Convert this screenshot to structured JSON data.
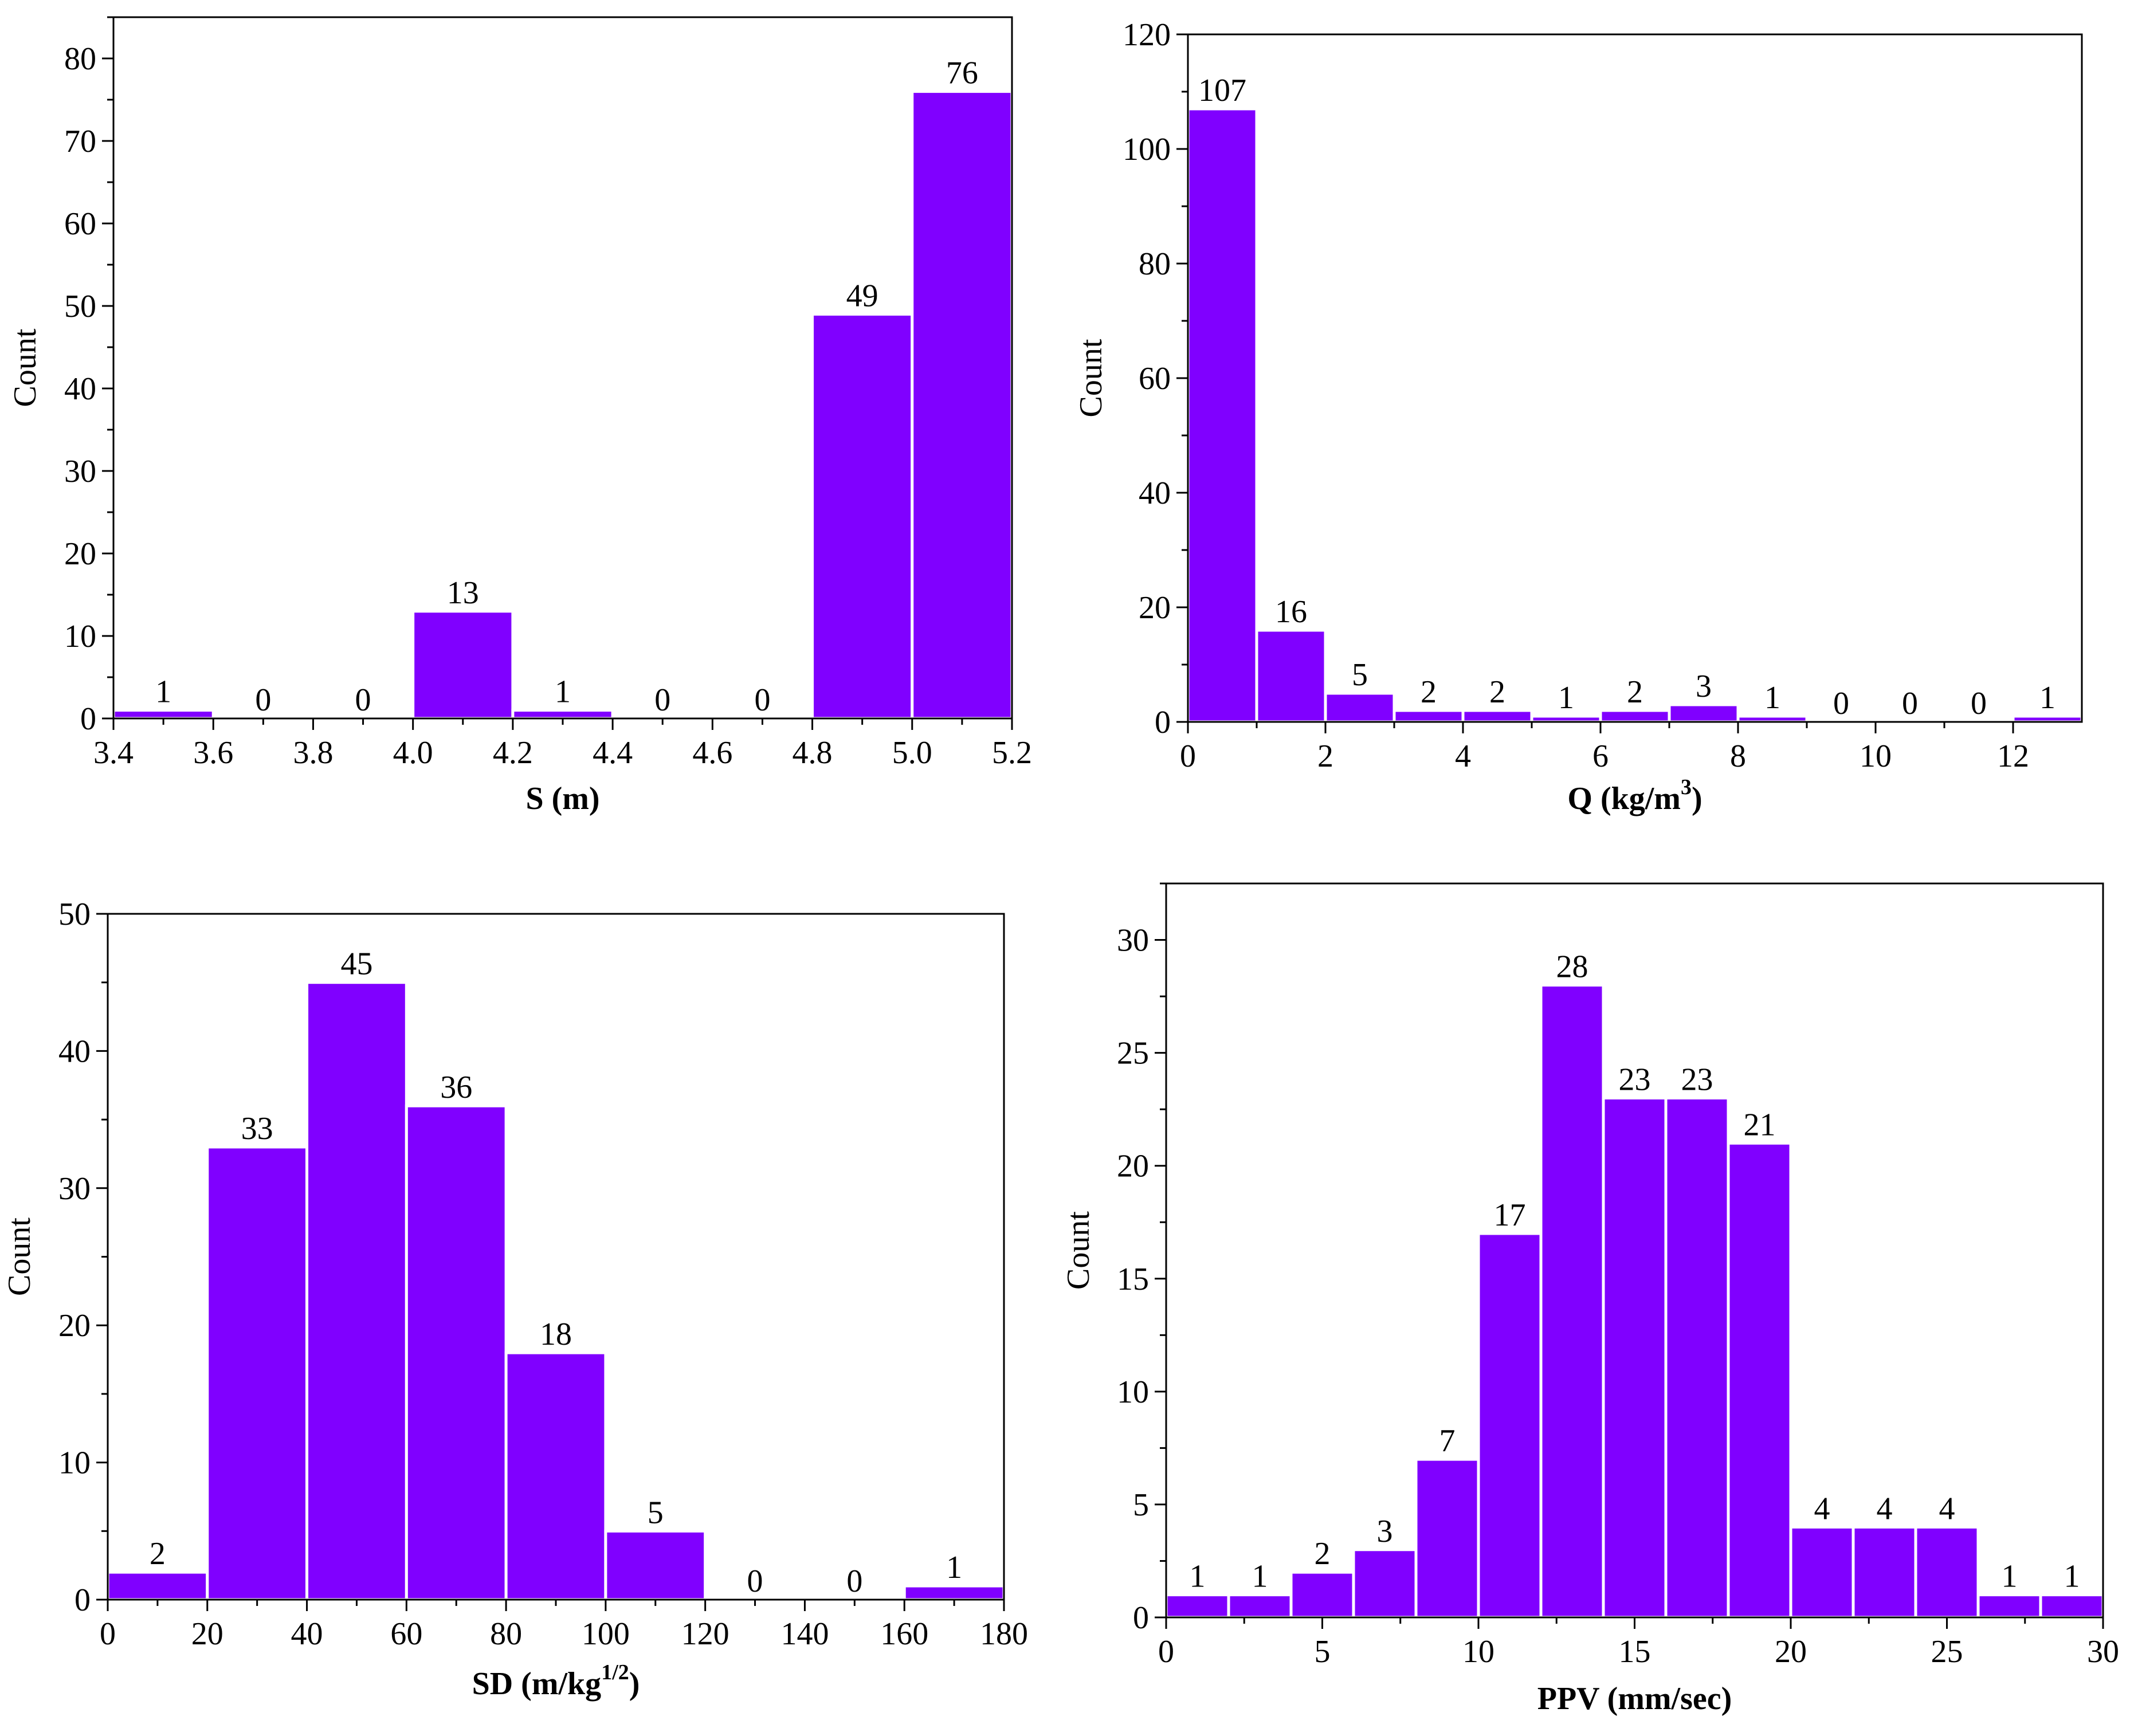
{
  "colors": {
    "bar": "#8000FF",
    "bar_edge": "#ffffff",
    "axis": "#000000"
  },
  "chart_data": [
    {
      "type": "bar",
      "xlabel": "S (m)",
      "ylabel": "Count",
      "bins": [
        [
          3.4,
          3.6
        ],
        [
          3.6,
          3.8
        ],
        [
          3.8,
          4.0
        ],
        [
          4.0,
          4.2
        ],
        [
          4.2,
          4.4
        ],
        [
          4.4,
          4.6
        ],
        [
          4.6,
          4.8
        ],
        [
          4.8,
          5.0
        ],
        [
          5.0,
          5.2
        ]
      ],
      "values": [
        1,
        0,
        0,
        13,
        1,
        0,
        0,
        49,
        76
      ],
      "xlim": [
        3.4,
        5.2
      ],
      "ylim": [
        0,
        85
      ],
      "xticks": [
        "3.4",
        "3.6",
        "3.8",
        "4.0",
        "4.2",
        "4.4",
        "4.6",
        "4.8",
        "5.0",
        "5.2"
      ],
      "yticks": [
        "0",
        "10",
        "20",
        "30",
        "40",
        "50",
        "60",
        "70",
        "80"
      ]
    },
    {
      "type": "bar",
      "xlabel": "Q (kg/m",
      "xlabel_sup": "3",
      "xlabel_end": ")",
      "ylabel": "Count",
      "bins": [
        [
          0,
          1
        ],
        [
          1,
          2
        ],
        [
          2,
          3
        ],
        [
          3,
          4
        ],
        [
          4,
          5
        ],
        [
          5,
          6
        ],
        [
          6,
          7
        ],
        [
          7,
          8
        ],
        [
          8,
          9
        ],
        [
          9,
          10
        ],
        [
          10,
          11
        ],
        [
          11,
          12
        ],
        [
          12,
          13
        ]
      ],
      "values": [
        107,
        16,
        5,
        2,
        2,
        1,
        2,
        3,
        1,
        0,
        0,
        0,
        1
      ],
      "xlim": [
        0,
        13
      ],
      "ylim": [
        0,
        120
      ],
      "xticks": [
        "0",
        "2",
        "4",
        "6",
        "8",
        "10",
        "12"
      ],
      "yticks": [
        "0",
        "20",
        "40",
        "60",
        "80",
        "100",
        "120"
      ]
    },
    {
      "type": "bar",
      "xlabel": "SD (m/kg",
      "xlabel_sup": "1/2",
      "xlabel_end": ")",
      "ylabel": "Count",
      "bins": [
        [
          0,
          20
        ],
        [
          20,
          40
        ],
        [
          40,
          60
        ],
        [
          60,
          80
        ],
        [
          80,
          100
        ],
        [
          100,
          120
        ],
        [
          120,
          140
        ],
        [
          140,
          160
        ],
        [
          160,
          180
        ]
      ],
      "values": [
        2,
        33,
        45,
        36,
        18,
        5,
        0,
        0,
        1
      ],
      "xlim": [
        0,
        180
      ],
      "ylim": [
        0,
        50
      ],
      "xticks": [
        "0",
        "20",
        "40",
        "60",
        "80",
        "100",
        "120",
        "140",
        "160",
        "180"
      ],
      "yticks": [
        "0",
        "10",
        "20",
        "30",
        "40",
        "50"
      ]
    },
    {
      "type": "bar",
      "xlabel": "PPV (mm/sec)",
      "ylabel": "Count",
      "bins": [
        [
          0,
          2
        ],
        [
          2,
          4
        ],
        [
          4,
          6
        ],
        [
          6,
          8
        ],
        [
          8,
          10
        ],
        [
          10,
          12
        ],
        [
          12,
          14
        ],
        [
          14,
          16
        ],
        [
          16,
          18
        ],
        [
          18,
          20
        ],
        [
          20,
          22
        ],
        [
          22,
          24
        ],
        [
          24,
          26
        ],
        [
          26,
          28
        ],
        [
          28,
          30
        ]
      ],
      "values": [
        1,
        1,
        2,
        3,
        7,
        17,
        28,
        23,
        23,
        21,
        4,
        4,
        4,
        1,
        1
      ],
      "xlim": [
        0,
        30
      ],
      "ylim": [
        0,
        32.5
      ],
      "xticks": [
        "0",
        "5",
        "10",
        "15",
        "20",
        "25",
        "30"
      ],
      "yticks": [
        "0",
        "5",
        "10",
        "15",
        "20",
        "25",
        "30"
      ]
    }
  ]
}
